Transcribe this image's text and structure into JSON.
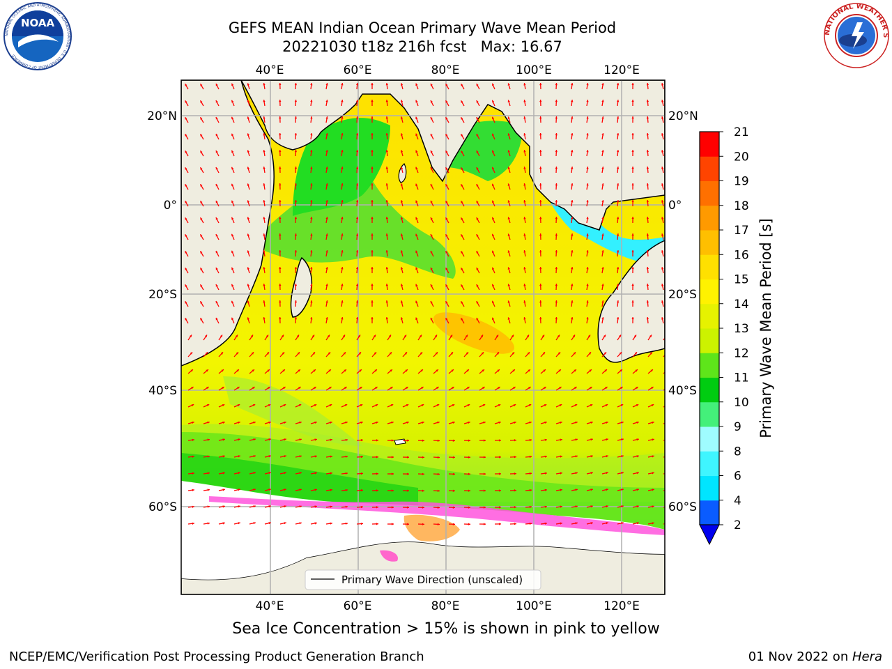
{
  "title": {
    "line1": "GEFS MEAN Indian Ocean Primary Wave Mean Period",
    "line2": "20221030 t18z 216h fcst   Max: 16.67"
  },
  "logos": {
    "noaa": {
      "text": "NOAA",
      "ring_text": "NATIONAL OCEANIC AND ATMOSPHERIC ADMINISTRATION · U.S. DEPARTMENT OF COMMERCE"
    },
    "nws": {
      "ring_text": "NATIONAL WEATHER SERVICE"
    }
  },
  "map": {
    "region": "Indian Ocean",
    "lon_ticks": [
      "40°E",
      "60°E",
      "80°E",
      "100°E",
      "120°E"
    ],
    "lat_ticks": [
      "20°N",
      "0°",
      "20°S",
      "40°S",
      "60°S"
    ],
    "legend_label": "Primary Wave Direction (unscaled)",
    "colors": {
      "land": "#efede0",
      "sea_ice": "#ffffff",
      "arrow": "#ff0000",
      "grid": "#b0b0b0"
    }
  },
  "colorbar": {
    "label": "Primary Wave Mean Period [s]",
    "ticks": [
      "2",
      "4",
      "6",
      "8",
      "9",
      "10",
      "11",
      "12",
      "13",
      "14",
      "15",
      "16",
      "17",
      "18",
      "19",
      "20",
      "21"
    ],
    "colors": [
      "#0a5cff",
      "#00e5ff",
      "#3ff5ff",
      "#9ffcff",
      "#44f07a",
      "#00cc11",
      "#5ee51a",
      "#ccf200",
      "#e6f200",
      "#fff200",
      "#ffe000",
      "#ffbf00",
      "#ff9a00",
      "#ff7000",
      "#ff4400",
      "#ff0000"
    ],
    "extend_color": "#0000ee"
  },
  "subcaption": "Sea Ice Concentration > 15% is shown in pink to yellow",
  "footer": {
    "left": "NCEP/EMC/Verification Post Processing Product Generation Branch",
    "right_date": "01 Nov 2022 on ",
    "right_host": "Hera"
  }
}
